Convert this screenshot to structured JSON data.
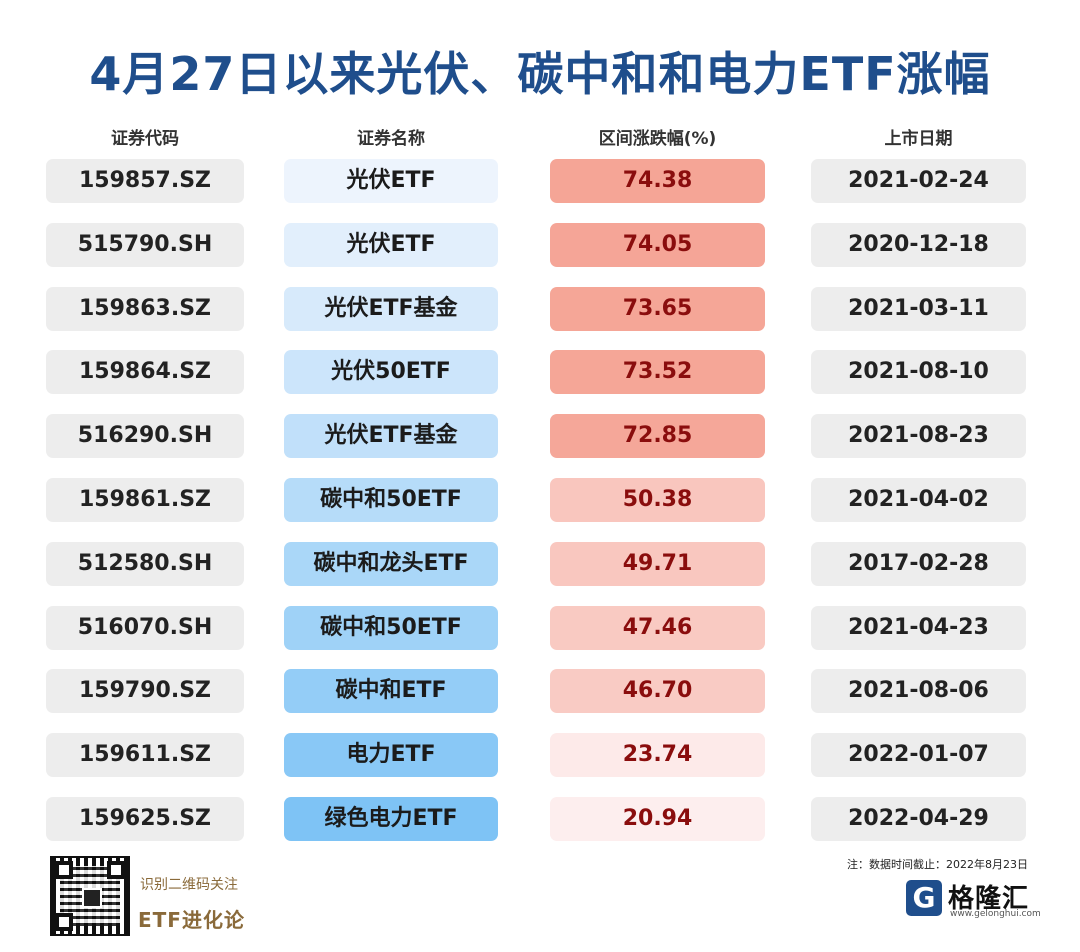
{
  "title": "4月27日以来光伏、碳中和和电力ETF涨幅",
  "headers": {
    "code": "证券代码",
    "name": "证券名称",
    "pct": "区间涨跌幅(%)",
    "date": "上市日期"
  },
  "rows": [
    {
      "code": "159857.SZ",
      "name": "光伏ETF",
      "pct": "74.38",
      "date": "2021-02-24"
    },
    {
      "code": "515790.SH",
      "name": "光伏ETF",
      "pct": "74.05",
      "date": "2020-12-18"
    },
    {
      "code": "159863.SZ",
      "name": "光伏ETF基金",
      "pct": "73.65",
      "date": "2021-03-11"
    },
    {
      "code": "159864.SZ",
      "name": "光伏50ETF",
      "pct": "73.52",
      "date": "2021-08-10"
    },
    {
      "code": "516290.SH",
      "name": "光伏ETF基金",
      "pct": "72.85",
      "date": "2021-08-23"
    },
    {
      "code": "159861.SZ",
      "name": "碳中和50ETF",
      "pct": "50.38",
      "date": "2021-04-02"
    },
    {
      "code": "512580.SH",
      "name": "碳中和龙头ETF",
      "pct": "49.71",
      "date": "2017-02-28"
    },
    {
      "code": "516070.SH",
      "name": "碳中和50ETF",
      "pct": "47.46",
      "date": "2021-04-23"
    },
    {
      "code": "159790.SZ",
      "name": "碳中和ETF",
      "pct": "46.70",
      "date": "2021-08-06"
    },
    {
      "code": "159611.SZ",
      "name": "电力ETF",
      "pct": "23.74",
      "date": "2022-01-07"
    },
    {
      "code": "159625.SZ",
      "name": "绿色电力ETF",
      "pct": "20.94",
      "date": "2022-04-29"
    }
  ],
  "colors": {
    "title": "#1f4e8c",
    "name_light": "#edf4fd",
    "name_dark": "#7ec3f5",
    "pct_high": "#f5a596",
    "pct_low": "#fdeeee"
  },
  "footer": {
    "scan_text": "识别二维码关注",
    "brand": "ETF进化论",
    "note": "注：数据时间截止：2022年8月23日",
    "logo_text": "格隆汇",
    "logo_url": "www.gelonghui.com"
  }
}
